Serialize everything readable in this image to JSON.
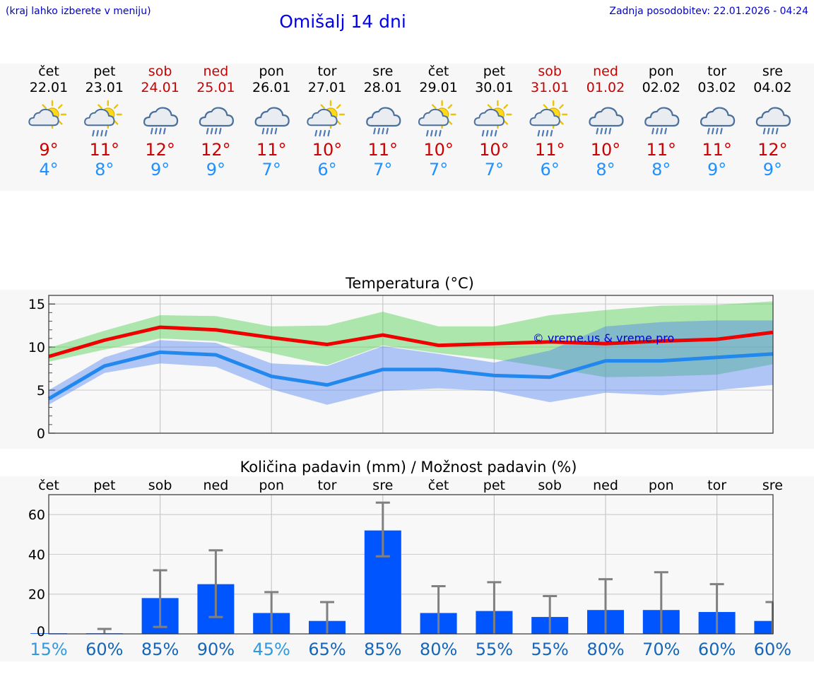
{
  "header": {
    "hint": "(kraj lahko izberete v meniju)",
    "title": "Omišalj 14 dni",
    "updated": "Zadnja posodobitev: 22.01.2026 - 04:24"
  },
  "colors": {
    "weekday": "#000000",
    "weekend": "#cc0000",
    "tmax": "#cc0000",
    "tmin": "#1e90ff",
    "bar": "#0055ff",
    "error": "#808080",
    "pct_low": "#3399dd",
    "pct_high": "#1565b8"
  },
  "days": [
    {
      "name": "čet",
      "date": "22.01",
      "weekend": false,
      "icon": "sun-cloud-icon",
      "tmax": "9°",
      "tmin": "4°"
    },
    {
      "name": "pet",
      "date": "23.01",
      "weekend": false,
      "icon": "sun-cloud-rain-icon",
      "tmax": "11°",
      "tmin": "8°"
    },
    {
      "name": "sob",
      "date": "24.01",
      "weekend": true,
      "icon": "cloud-rain-icon",
      "tmax": "12°",
      "tmin": "9°"
    },
    {
      "name": "ned",
      "date": "25.01",
      "weekend": true,
      "icon": "cloud-rain-icon",
      "tmax": "12°",
      "tmin": "9°"
    },
    {
      "name": "pon",
      "date": "26.01",
      "weekend": false,
      "icon": "cloud-rain-icon",
      "tmax": "11°",
      "tmin": "7°"
    },
    {
      "name": "tor",
      "date": "27.01",
      "weekend": false,
      "icon": "sun-cloud-rain-icon",
      "tmax": "10°",
      "tmin": "6°"
    },
    {
      "name": "sre",
      "date": "28.01",
      "weekend": false,
      "icon": "cloud-rain-icon",
      "tmax": "11°",
      "tmin": "7°"
    },
    {
      "name": "čet",
      "date": "29.01",
      "weekend": false,
      "icon": "sun-cloud-rain-icon",
      "tmax": "10°",
      "tmin": "7°"
    },
    {
      "name": "pet",
      "date": "30.01",
      "weekend": false,
      "icon": "sun-cloud-rain-icon",
      "tmax": "10°",
      "tmin": "7°"
    },
    {
      "name": "sob",
      "date": "31.01",
      "weekend": true,
      "icon": "sun-cloud-rain-icon",
      "tmax": "11°",
      "tmin": "6°"
    },
    {
      "name": "ned",
      "date": "01.02",
      "weekend": true,
      "icon": "cloud-rain-icon",
      "tmax": "10°",
      "tmin": "8°"
    },
    {
      "name": "pon",
      "date": "02.02",
      "weekend": false,
      "icon": "cloud-rain-icon",
      "tmax": "11°",
      "tmin": "8°"
    },
    {
      "name": "tor",
      "date": "03.02",
      "weekend": false,
      "icon": "cloud-rain-icon",
      "tmax": "11°",
      "tmin": "9°"
    },
    {
      "name": "sre",
      "date": "04.02",
      "weekend": false,
      "icon": "cloud-rain-icon",
      "tmax": "12°",
      "tmin": "9°"
    }
  ],
  "chart_data": [
    {
      "type": "line",
      "title": "Temperatura (°C)",
      "watermark": "© vreme.us & vreme.pro",
      "ylim": [
        0,
        16
      ],
      "yticks": [
        0,
        5,
        10,
        15
      ],
      "x": [
        0,
        1,
        2,
        3,
        4,
        5,
        6,
        7,
        8,
        9,
        10,
        11,
        12,
        13
      ],
      "series": [
        {
          "name": "max",
          "color": "#ee0000",
          "values": [
            8.9,
            10.8,
            12.3,
            12.0,
            11.1,
            10.3,
            11.4,
            10.2,
            10.4,
            10.6,
            10.4,
            10.7,
            10.9,
            11.7
          ],
          "band_low": [
            8.3,
            9.7,
            11.0,
            10.7,
            9.3,
            7.9,
            10.2,
            9.3,
            8.6,
            7.6,
            6.5,
            6.6,
            6.8,
            8.0
          ],
          "band_high": [
            9.9,
            11.9,
            13.7,
            13.6,
            12.4,
            12.5,
            14.1,
            12.4,
            12.4,
            13.7,
            14.3,
            14.8,
            14.9,
            15.3
          ]
        },
        {
          "name": "min",
          "color": "#2288ee",
          "values": [
            4.0,
            7.8,
            9.4,
            9.1,
            6.6,
            5.6,
            7.4,
            7.4,
            6.7,
            6.5,
            8.4,
            8.4,
            8.8,
            9.2
          ],
          "band_low": [
            3.3,
            7.0,
            8.1,
            7.7,
            5.1,
            3.3,
            4.9,
            5.2,
            4.9,
            3.6,
            4.7,
            4.4,
            5.0,
            5.6
          ],
          "band_high": [
            5.0,
            8.8,
            10.8,
            10.5,
            8.1,
            7.8,
            10.1,
            9.2,
            8.2,
            9.6,
            12.4,
            12.9,
            13.1,
            13.1
          ]
        }
      ]
    },
    {
      "type": "bar",
      "title": "Količina padavin (mm) / Možnost padavin (%)",
      "ylim": [
        0,
        70
      ],
      "yticks": [
        0,
        20,
        40,
        60
      ],
      "categories": [
        "čet",
        "pet",
        "sob",
        "ned",
        "pon",
        "tor",
        "sre",
        "čet",
        "pet",
        "sob",
        "ned",
        "pon",
        "tor",
        "sre"
      ],
      "values": [
        0.3,
        0.3,
        18,
        25,
        10.5,
        6.5,
        52,
        10.5,
        11.5,
        8.5,
        12,
        12,
        11,
        6.5
      ],
      "error_low": [
        0,
        0,
        3.5,
        8.5,
        0,
        0,
        39,
        0,
        0,
        0,
        0,
        0,
        0,
        0
      ],
      "error_high": [
        0,
        2.5,
        32,
        42,
        21,
        16,
        66,
        24,
        26,
        19,
        27.5,
        31,
        25,
        16
      ],
      "probabilities": [
        "15%",
        "60%",
        "85%",
        "90%",
        "45%",
        "65%",
        "85%",
        "80%",
        "55%",
        "55%",
        "80%",
        "70%",
        "60%",
        "60%"
      ]
    }
  ]
}
